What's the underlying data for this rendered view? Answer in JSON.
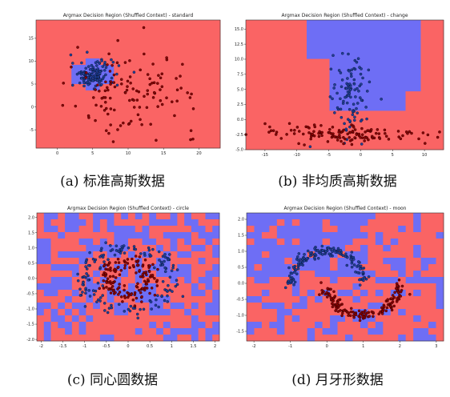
{
  "colors": {
    "red_region": "#fa6464",
    "blue_region": "#6e6ef5",
    "class0_point": "#1f3f9a",
    "class1_point": "#8b0000",
    "frame": "#333333"
  },
  "chart_data": [
    {
      "type": "scatter",
      "title": "Argmax Decision Region (Shuffled Context) - standard",
      "caption": "(a) 标准高斯数据",
      "xlim": [
        -3,
        23
      ],
      "ylim": [
        -9,
        19
      ],
      "xticks": [
        0,
        5,
        10,
        15,
        20
      ],
      "yticks": [
        -5,
        0,
        5,
        10,
        15
      ],
      "grid": false,
      "series": [
        {
          "class": 0,
          "cluster": {
            "center": [
              5,
              7
            ],
            "spread": [
              1.5,
              1.5
            ]
          },
          "count": 120
        },
        {
          "class": 1,
          "cluster": {
            "center": [
              11,
              3.5
            ],
            "spread": [
              4.5,
              4.5
            ]
          },
          "count": 120
        }
      ]
    },
    {
      "type": "scatter",
      "title": "Argmax Decision Region (Shuffled Context) - change",
      "caption": "(b) 非均质高斯数据",
      "xlim": [
        -18,
        13
      ],
      "ylim": [
        -5,
        16.5
      ],
      "xticks": [
        -15,
        -10,
        -5,
        0,
        5,
        10
      ],
      "yticks": [
        -5.0,
        -2.5,
        0.0,
        2.5,
        5.0,
        7.5,
        10.0,
        12.5,
        15.0
      ],
      "grid": false,
      "series": [
        {
          "class": 0,
          "cluster": {
            "center": [
              -1.5,
              4
            ],
            "spread": [
              1.5,
              3.5
            ]
          },
          "count": 100
        },
        {
          "class": 1,
          "cluster": {
            "center": [
              -2,
              -2.5
            ],
            "spread": [
              7,
              0.8
            ]
          },
          "count": 130
        }
      ]
    },
    {
      "type": "scatter",
      "title": "Argmax Decision Region (Shuffled Context) - circle",
      "caption": "(c) 同心圆数据",
      "xlim": [
        -2.1,
        2.1
      ],
      "ylim": [
        -2.05,
        2.15
      ],
      "xticks": [
        -2.0,
        -1.5,
        -1.0,
        -0.5,
        0.0,
        0.5,
        1.0,
        1.5,
        2.0
      ],
      "yticks": [
        -2.0,
        -1.5,
        -1.0,
        -0.5,
        0.0,
        0.5,
        1.0,
        1.5,
        2.0
      ],
      "grid": false,
      "series": [
        {
          "class": 0,
          "ring_radius": 1.0,
          "count": 150
        },
        {
          "class": 1,
          "ring_radius": 0.5,
          "count": 150
        }
      ]
    },
    {
      "type": "scatter",
      "title": "Argmax Decision Region (Shuffled Context) - moon",
      "caption": "(d) 月牙形数据",
      "xlim": [
        -2.2,
        3.2
      ],
      "ylim": [
        -1.8,
        2.2
      ],
      "xticks": [
        -2,
        -1,
        0,
        1,
        2,
        3
      ],
      "yticks": [
        -1.5,
        -1.0,
        -0.5,
        0.0,
        0.5,
        1.0,
        1.5,
        2.0
      ],
      "grid": false,
      "series": [
        {
          "class": 0,
          "shape": "upper moon",
          "count": 150
        },
        {
          "class": 1,
          "shape": "lower moon",
          "count": 150
        }
      ]
    }
  ]
}
